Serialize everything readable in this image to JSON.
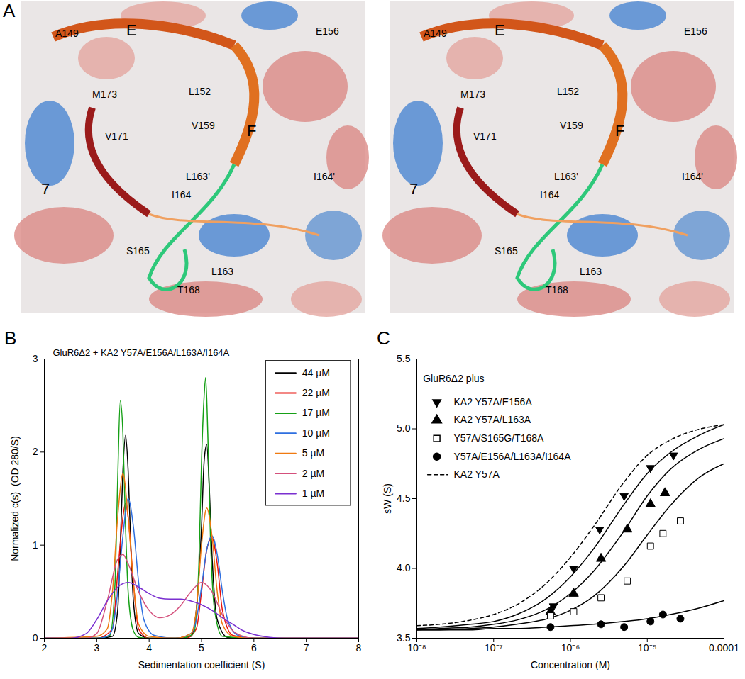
{
  "structure_panel": {
    "panel_label": "A",
    "labels": [
      "A149",
      "E",
      "E156",
      "L152",
      "M173",
      "V159",
      "F",
      "V171",
      "L163'",
      "I164'",
      "7",
      "I164",
      "S165",
      "L163",
      "T168"
    ]
  },
  "chart_data": [
    {
      "panel_label": "B",
      "type": "line",
      "title": "GluR6Δ2 + KA2 Y57A/E156A/L163A/I164A",
      "x_label": "Sedimentation coefficient (S)",
      "y_label": "Normalized c(s)  (OD 280/S)",
      "xlim": [
        2,
        8
      ],
      "xticks": [
        2,
        3,
        4,
        5,
        6,
        7,
        8
      ],
      "ylim": [
        0,
        3
      ],
      "yticks": [
        0,
        1,
        2,
        3
      ],
      "legend": "top-right",
      "series": [
        {
          "name": "44 µM",
          "color": "#000000",
          "x": [
            2,
            3,
            3.3,
            3.4,
            3.45,
            3.5,
            3.55,
            3.6,
            3.65,
            3.7,
            3.8,
            4.0,
            4.5,
            4.8,
            4.9,
            5.0,
            5.05,
            5.1,
            5.15,
            5.2,
            5.3,
            5.5,
            6,
            7,
            8
          ],
          "values": [
            0,
            0,
            0.02,
            0.3,
            1.0,
            1.8,
            2.18,
            1.8,
            1.0,
            0.4,
            0.05,
            0,
            0,
            0.02,
            0.3,
            1.2,
            1.9,
            2.08,
            1.6,
            0.9,
            0.2,
            0.01,
            0,
            0,
            0
          ]
        },
        {
          "name": "22 µM",
          "color": "#e8120c",
          "x": [
            2,
            3,
            3.3,
            3.4,
            3.5,
            3.55,
            3.6,
            3.7,
            3.8,
            4,
            4.7,
            4.9,
            5.0,
            5.1,
            5.2,
            5.3,
            5.4,
            5.6,
            6,
            8
          ],
          "values": [
            0,
            0,
            0.1,
            0.7,
            1.3,
            1.45,
            1.3,
            0.6,
            0.1,
            0,
            0,
            0.1,
            0.5,
            0.95,
            1.08,
            0.8,
            0.3,
            0.03,
            0,
            0
          ]
        },
        {
          "name": "17 µM",
          "color": "#16a016",
          "x": [
            2,
            3,
            3.25,
            3.35,
            3.4,
            3.45,
            3.5,
            3.55,
            3.6,
            3.7,
            3.8,
            4,
            4.6,
            4.85,
            4.95,
            5.0,
            5.05,
            5.08,
            5.12,
            5.17,
            5.25,
            5.4,
            6,
            8
          ],
          "values": [
            0,
            0,
            0.03,
            0.6,
            1.7,
            2.55,
            2.2,
            1.2,
            0.5,
            0.08,
            0.01,
            0,
            0,
            0.05,
            0.8,
            1.9,
            2.6,
            2.8,
            2.2,
            1.1,
            0.3,
            0.02,
            0,
            0
          ]
        },
        {
          "name": "10 µM",
          "color": "#2e6fe0",
          "x": [
            2,
            3,
            3.2,
            3.3,
            3.4,
            3.5,
            3.6,
            3.7,
            3.8,
            3.9,
            4.1,
            4.5,
            4.8,
            4.9,
            5.0,
            5.1,
            5.2,
            5.3,
            5.4,
            5.5,
            5.7,
            6,
            8
          ],
          "values": [
            0,
            0,
            0.02,
            0.1,
            0.5,
            1.1,
            1.5,
            1.2,
            0.6,
            0.2,
            0.03,
            0,
            0.05,
            0.2,
            0.55,
            0.95,
            1.1,
            0.9,
            0.5,
            0.2,
            0.03,
            0,
            0
          ]
        },
        {
          "name": "5 µM",
          "color": "#f07a10",
          "x": [
            2,
            3,
            3.2,
            3.3,
            3.4,
            3.5,
            3.6,
            3.7,
            3.8,
            4.0,
            4.5,
            4.8,
            4.9,
            5.0,
            5.1,
            5.2,
            5.3,
            5.4,
            5.6,
            6,
            8
          ],
          "values": [
            0,
            0.02,
            0.1,
            0.5,
            1.3,
            1.77,
            1.3,
            0.6,
            0.15,
            0.02,
            0,
            0.05,
            0.3,
            1.0,
            1.4,
            1.1,
            0.5,
            0.15,
            0.02,
            0,
            0
          ]
        },
        {
          "name": "2 µM",
          "color": "#d4507c",
          "x": [
            2,
            2.8,
            3.0,
            3.2,
            3.4,
            3.5,
            3.6,
            3.8,
            4.0,
            4.2,
            4.4,
            4.6,
            4.8,
            5.0,
            5.2,
            5.4,
            5.6,
            5.8,
            6.0,
            6.5,
            8
          ],
          "values": [
            0,
            0,
            0.05,
            0.4,
            0.85,
            0.9,
            0.8,
            0.5,
            0.3,
            0.22,
            0.25,
            0.35,
            0.5,
            0.6,
            0.5,
            0.25,
            0.08,
            0.02,
            0,
            0,
            0
          ]
        },
        {
          "name": "1 µM",
          "color": "#7a2fd0",
          "x": [
            2,
            2.5,
            2.8,
            3.0,
            3.2,
            3.4,
            3.6,
            3.8,
            4.0,
            4.2,
            4.4,
            4.6,
            4.8,
            5.0,
            5.2,
            5.4,
            5.6,
            5.8,
            6.0,
            6.3,
            6.6,
            7,
            8
          ],
          "values": [
            0,
            0,
            0.05,
            0.2,
            0.4,
            0.55,
            0.6,
            0.55,
            0.48,
            0.43,
            0.42,
            0.42,
            0.4,
            0.36,
            0.3,
            0.22,
            0.15,
            0.08,
            0.04,
            0.01,
            0,
            0,
            0
          ]
        }
      ]
    },
    {
      "panel_label": "C",
      "type": "scatter",
      "legend_title": "GluR6Δ2 plus",
      "x_label": "Concentration (M)",
      "y_label": "sW (S)",
      "log": "x",
      "xlim": [
        1e-08,
        0.0001
      ],
      "xticks": [
        {
          "value": 1e-08,
          "label": "10⁻⁸"
        },
        {
          "value": 1e-07,
          "label": "10⁻⁷"
        },
        {
          "value": 1e-06,
          "label": "10⁻⁶"
        },
        {
          "value": 1e-05,
          "label": "10⁻⁵"
        },
        {
          "value": 0.0001,
          "label": "0.0001"
        }
      ],
      "ylim": [
        3.5,
        5.5
      ],
      "yticks": [
        3.5,
        {
          "value": 4,
          "label": "4.0"
        },
        4.5,
        {
          "value": 5,
          "label": "5.0"
        },
        5.5
      ],
      "legend": "top-left",
      "series": [
        {
          "name": "KA2 Y57A/E156A",
          "marker": "triangle-down",
          "color": "#000000",
          "x": [
            6e-07,
            1.1e-06,
            2.4e-06,
            5e-06,
            1.1e-05,
            2.2e-05
          ],
          "values": [
            3.73,
            4.0,
            4.28,
            4.52,
            4.72,
            4.81
          ],
          "fit": {
            "x": [
              1e-08,
              2e-08,
              5e-08,
              1e-07,
              2e-07,
              5e-07,
              1e-06,
              2e-06,
              5e-06,
              1e-05,
              2e-05,
              5e-05,
              0.0001
            ],
            "values": [
              3.57,
              3.58,
              3.6,
              3.62,
              3.67,
              3.79,
              3.94,
              4.14,
              4.46,
              4.68,
              4.83,
              4.96,
              5.03
            ]
          }
        },
        {
          "name": "KA2 Y57A/L163A",
          "marker": "triangle",
          "color": "#000000",
          "x": [
            5.5e-07,
            1.1e-06,
            2.5e-06,
            5.5e-06,
            1.1e-05,
            1.7e-05
          ],
          "values": [
            3.69,
            3.82,
            4.07,
            4.28,
            4.46,
            4.54
          ],
          "fit": {
            "x": [
              1e-08,
              2e-08,
              5e-08,
              1e-07,
              2e-07,
              5e-07,
              1e-06,
              2e-06,
              5e-06,
              1e-05,
              2e-05,
              5e-05,
              0.0001
            ],
            "values": [
              3.56,
              3.57,
              3.58,
              3.6,
              3.63,
              3.71,
              3.82,
              3.98,
              4.27,
              4.52,
              4.71,
              4.86,
              4.93
            ]
          }
        },
        {
          "name": "Y57A/S165G/T168A",
          "marker": "square-open",
          "color": "#000000",
          "x": [
            5.5e-07,
            1.1e-06,
            2.5e-06,
            5.5e-06,
            1.1e-05,
            1.6e-05,
            2.7e-05
          ],
          "values": [
            3.66,
            3.69,
            3.79,
            3.91,
            4.16,
            4.25,
            4.34
          ],
          "fit": {
            "x": [
              1e-08,
              2e-08,
              5e-08,
              1e-07,
              2e-07,
              5e-07,
              1e-06,
              2e-06,
              5e-06,
              1e-05,
              2e-05,
              5e-05,
              0.0001
            ],
            "values": [
              3.56,
              3.56,
              3.57,
              3.58,
              3.6,
              3.64,
              3.7,
              3.8,
              4.02,
              4.24,
              4.45,
              4.66,
              4.75
            ]
          }
        },
        {
          "name": "Y57A/E156A/L163A/I164A",
          "marker": "circle",
          "color": "#000000",
          "x": [
            5.5e-07,
            2.5e-06,
            5e-06,
            1.1e-05,
            1.6e-05,
            2.7e-05
          ],
          "values": [
            3.58,
            3.6,
            3.58,
            3.62,
            3.67,
            3.64
          ],
          "fit": {
            "x": [
              1e-08,
              2e-08,
              5e-08,
              1e-07,
              2e-07,
              5e-07,
              1e-06,
              2e-06,
              5e-06,
              1e-05,
              2e-05,
              5e-05,
              0.0001
            ],
            "values": [
              3.56,
              3.56,
              3.56,
              3.57,
              3.57,
              3.58,
              3.59,
              3.6,
              3.62,
              3.64,
              3.67,
              3.72,
              3.77
            ]
          }
        },
        {
          "name": "KA2 Y57A",
          "type": "line",
          "line_style": "dashed",
          "color": "#000000",
          "x": [
            1e-08,
            2e-08,
            5e-08,
            1e-07,
            2e-07,
            5e-07,
            1e-06,
            2e-06,
            5e-06,
            1e-05,
            2e-05,
            5e-05,
            0.0001
          ],
          "values": [
            3.59,
            3.6,
            3.63,
            3.67,
            3.74,
            3.9,
            4.08,
            4.3,
            4.62,
            4.81,
            4.92,
            5.0,
            5.03
          ]
        }
      ]
    }
  ]
}
